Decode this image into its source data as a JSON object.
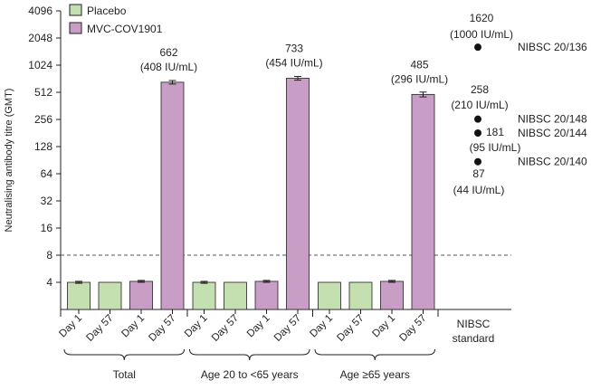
{
  "chart_data": {
    "type": "bar",
    "ylabel": "Neutralising antibody titre (GMT)",
    "yscale": "log2",
    "ylim": [
      2,
      4096
    ],
    "yticks": [
      4,
      8,
      16,
      32,
      64,
      128,
      256,
      512,
      1024,
      2048,
      4096
    ],
    "ytick_labels": [
      "4",
      "8",
      "16",
      "32",
      "64",
      "128",
      "256",
      "512",
      "1024",
      "2048",
      "4096"
    ],
    "threshold": 8,
    "legend": [
      {
        "name": "Placebo",
        "color": "#c5e0b0"
      },
      {
        "name": "MVC-COV1901",
        "color": "#c89ec7"
      }
    ],
    "groups": [
      {
        "label": "Total",
        "bars": [
          {
            "tick": "Day 1",
            "series": "Placebo",
            "value": 4.0,
            "err": 0.1
          },
          {
            "tick": "Day 57",
            "series": "Placebo",
            "value": 4.0,
            "err": 0
          },
          {
            "tick": "Day 1",
            "series": "MVC-COV1901",
            "value": 4.1,
            "err": 0.1
          },
          {
            "tick": "Day 57",
            "series": "MVC-COV1901",
            "value": 662,
            "err": 30,
            "label1": "662",
            "label2": "(408 IU/mL)"
          }
        ]
      },
      {
        "label": "Age 20 to <65 years",
        "bars": [
          {
            "tick": "Day 1",
            "series": "Placebo",
            "value": 4.0,
            "err": 0.1
          },
          {
            "tick": "Day 57",
            "series": "Placebo",
            "value": 4.0,
            "err": 0
          },
          {
            "tick": "Day 1",
            "series": "MVC-COV1901",
            "value": 4.1,
            "err": 0.1
          },
          {
            "tick": "Day 57",
            "series": "MVC-COV1901",
            "value": 733,
            "err": 35,
            "label1": "733",
            "label2": "(454 IU/mL)"
          }
        ]
      },
      {
        "label": "Age ≥65 years",
        "bars": [
          {
            "tick": "Day 1",
            "series": "Placebo",
            "value": 4.0,
            "err": 0
          },
          {
            "tick": "Day 57",
            "series": "Placebo",
            "value": 4.0,
            "err": 0
          },
          {
            "tick": "Day 1",
            "series": "MVC-COV1901",
            "value": 4.1,
            "err": 0.1
          },
          {
            "tick": "Day 57",
            "series": "MVC-COV1901",
            "value": 485,
            "err": 30,
            "label1": "485",
            "label2": "(296 IU/mL)"
          }
        ]
      }
    ],
    "standard_label": [
      "NIBSC",
      "standard"
    ],
    "standards": [
      {
        "name": "NIBSC 20/136",
        "value": 1620,
        "label1": "1620",
        "label2": "(1000 IU/mL)"
      },
      {
        "name": "NIBSC 20/148",
        "value": 258,
        "label1": "258",
        "label2": "(210 IU/mL)"
      },
      {
        "name": "NIBSC 20/144",
        "value": 181,
        "label1": "181",
        "label2": "(95 IU/mL)"
      },
      {
        "name": "NIBSC 20/140",
        "value": 87,
        "label1": "87",
        "label2": "(44 IU/mL)"
      }
    ]
  }
}
